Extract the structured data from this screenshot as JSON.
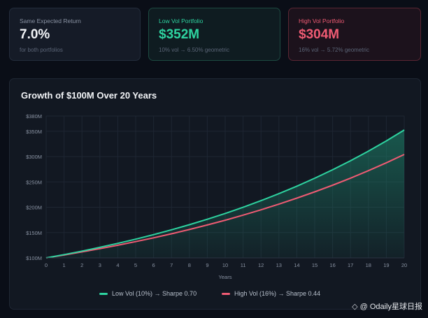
{
  "cards": {
    "same": {
      "label": "Same Expected Return",
      "value": "7.0%",
      "sub": "for both portfolios"
    },
    "low": {
      "label": "Low Vol Portfolio",
      "value": "$352M",
      "sub": "10% vol → 6.50% geometric"
    },
    "high": {
      "label": "High Vol Portfolio",
      "value": "$304M",
      "sub": "16% vol → 5.72% geometric"
    }
  },
  "colors": {
    "low": "#2ed3a0",
    "high": "#ef5b73",
    "grid": "#1e2633"
  },
  "chart_data": {
    "type": "line",
    "title": "Growth of $100M Over 20 Years",
    "xlabel": "Years",
    "ylabel": "",
    "x": [
      0,
      1,
      2,
      3,
      4,
      5,
      6,
      7,
      8,
      9,
      10,
      11,
      12,
      13,
      14,
      15,
      16,
      17,
      18,
      19,
      20
    ],
    "xlim": [
      0,
      20
    ],
    "ylim": [
      100,
      380
    ],
    "y_ticks": [
      100,
      150,
      200,
      250,
      300,
      350,
      380
    ],
    "y_tick_labels": [
      "$100M",
      "$150M",
      "$200M",
      "$250M",
      "$300M",
      "$350M",
      "$380M"
    ],
    "x_tick_labels": [
      "0",
      "1",
      "2",
      "3",
      "4",
      "5",
      "6",
      "7",
      "8",
      "9",
      "10",
      "11",
      "12",
      "13",
      "14",
      "15",
      "16",
      "17",
      "18",
      "19",
      "20"
    ],
    "grid": true,
    "legend_position": "bottom",
    "series": [
      {
        "name": "Low Vol (10%) → Sharpe 0.70",
        "values": [
          100,
          106.5,
          113.4,
          120.8,
          128.7,
          137,
          145.9,
          155.4,
          165.5,
          176.3,
          187.7,
          199.9,
          212.9,
          226.8,
          241.5,
          257.2,
          273.9,
          291.7,
          310.7,
          330.9,
          352.4
        ]
      },
      {
        "name": "High Vol (16%) → Sharpe 0.44",
        "values": [
          100,
          105.7,
          111.8,
          118.2,
          124.9,
          132.1,
          139.6,
          147.6,
          156,
          164.9,
          174.4,
          184.4,
          194.9,
          206.1,
          217.9,
          230.3,
          243.5,
          257.4,
          272.1,
          287.7,
          304.1
        ]
      }
    ]
  },
  "watermark": {
    "icon": "odaily-logo-icon",
    "text": "@ Odaily星球日报"
  }
}
